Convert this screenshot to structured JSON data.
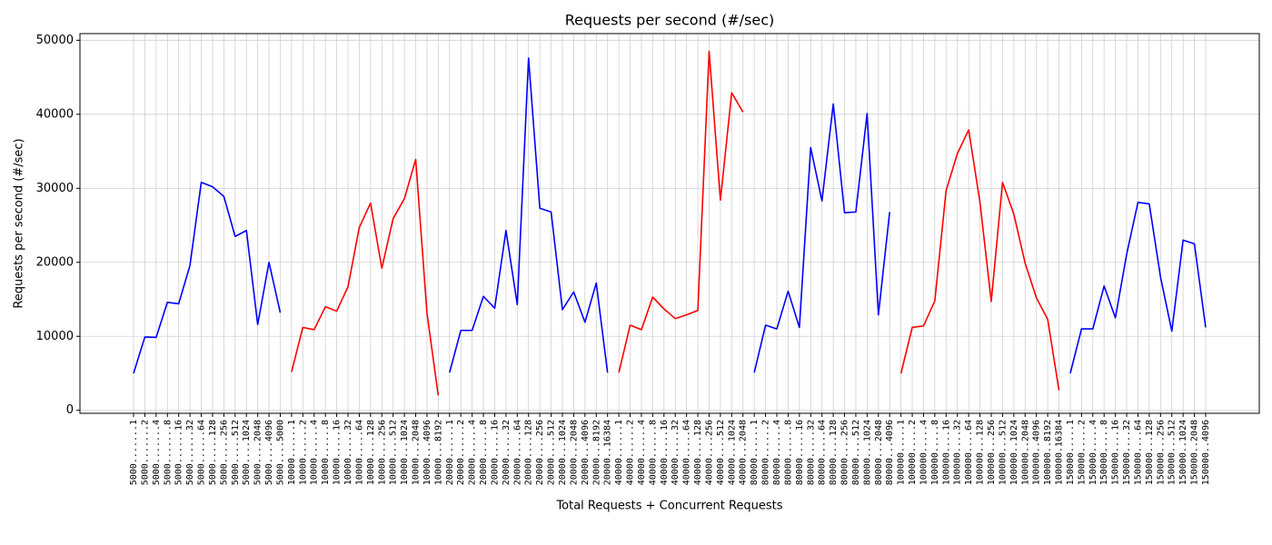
{
  "chart_data": {
    "type": "line",
    "title": "Requests per second (#/sec)",
    "x_label": "Total Requests + Concurrent Requests",
    "y_label": "Requests per second (#/sec)",
    "categories": [
      "5000.......1",
      "5000.......2",
      "5000.......4",
      "5000.......8",
      "5000......16",
      "5000......32",
      "5000......64",
      "5000.....128",
      "5000.....256",
      "5000.....512",
      "5000....1024",
      "5000....2048",
      "5000....4096",
      "5000....5000",
      "10000......1",
      "10000......2",
      "10000......4",
      "10000......8",
      "10000.....16",
      "10000.....32",
      "10000.....64",
      "10000....128",
      "10000....256",
      "10000....512",
      "10000...1024",
      "10000...2048",
      "10000...4096",
      "10000...8192",
      "20000......1",
      "20000......2",
      "20000......4",
      "20000......8",
      "20000.....16",
      "20000.....32",
      "20000.....64",
      "20000....128",
      "20000....256",
      "20000....512",
      "20000...1024",
      "20000...2048",
      "20000...4096",
      "20000...8192",
      "20000..16384",
      "40000......1",
      "40000......2",
      "40000......4",
      "40000......8",
      "40000.....16",
      "40000.....32",
      "40000.....64",
      "40000....128",
      "40000....256",
      "40000....512",
      "40000...1024",
      "40000...2048",
      "80000......1",
      "80000......2",
      "80000......4",
      "80000......8",
      "80000.....16",
      "80000.....32",
      "80000.....64",
      "80000....128",
      "80000....256",
      "80000....512",
      "80000...1024",
      "80000...2048",
      "80000...4096",
      "100000.....1",
      "100000.....2",
      "100000.....4",
      "100000.....8",
      "100000....16",
      "100000....32",
      "100000....64",
      "100000...128",
      "100000...256",
      "100000...512",
      "100000..1024",
      "100000..2048",
      "100000..4096",
      "100000..8192",
      "100000.16384",
      "150000.....1",
      "150000.....2",
      "150000.....4",
      "150000.....8",
      "150000....16",
      "150000....32",
      "150000....64",
      "150000...128",
      "150000...256",
      "150000...512",
      "150000..1024",
      "150000..2048",
      "150000..4096"
    ],
    "series": [
      {
        "color": "#0000ff",
        "values": [
          5000,
          9900,
          9850,
          14600,
          14400,
          19600,
          30800,
          30200,
          28900,
          23500,
          24300,
          11600,
          20000,
          13200,
          null,
          null,
          null,
          null,
          null,
          null,
          null,
          null,
          null,
          null,
          null,
          null,
          null,
          null,
          5100,
          10800,
          10800,
          15400,
          13800,
          24300,
          14300,
          47600,
          27300,
          26800,
          13600,
          16000,
          11900,
          17200,
          5100,
          null,
          null,
          null,
          null,
          null,
          null,
          null,
          null,
          null,
          null,
          null,
          null,
          5100,
          11500,
          11000,
          16100,
          11200,
          35500,
          28300,
          41400,
          26700,
          26800,
          40100,
          12900,
          26800,
          null,
          null,
          null,
          null,
          null,
          null,
          null,
          null,
          null,
          null,
          null,
          null,
          null,
          null,
          null,
          5000,
          11000,
          11000,
          16800,
          12500,
          21100,
          28100,
          27900,
          18000,
          10700,
          23000,
          22500,
          11200
        ]
      },
      {
        "color": "#ff0000",
        "values": [
          null,
          null,
          null,
          null,
          null,
          null,
          null,
          null,
          null,
          null,
          null,
          null,
          null,
          null,
          5200,
          11200,
          10900,
          14000,
          13400,
          16700,
          24700,
          28000,
          19200,
          25900,
          28600,
          33900,
          13100,
          2000,
          null,
          null,
          null,
          null,
          null,
          null,
          null,
          null,
          null,
          null,
          null,
          null,
          null,
          null,
          null,
          5100,
          11500,
          10900,
          15300,
          13700,
          12400,
          12900,
          13500,
          48500,
          28400,
          42900,
          40300,
          null,
          null,
          null,
          null,
          null,
          null,
          null,
          null,
          null,
          null,
          null,
          null,
          null,
          5000,
          11200,
          11400,
          14800,
          29700,
          34700,
          37900,
          28100,
          14700,
          30800,
          26500,
          19900,
          15200,
          12300,
          2700,
          null,
          null,
          null,
          null,
          null,
          null,
          null,
          null,
          null,
          null,
          null,
          null,
          null
        ]
      }
    ],
    "ylim": [
      -400,
      50900
    ],
    "yticks": [
      0,
      10000,
      20000,
      30000,
      40000,
      50000
    ],
    "grid": true
  }
}
